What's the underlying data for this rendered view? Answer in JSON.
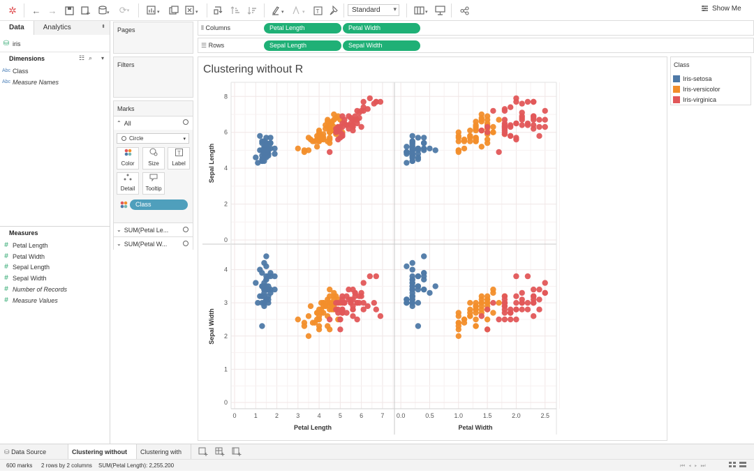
{
  "toolbar": {
    "mark_type_select": "Standard",
    "show_me": "Show Me"
  },
  "data_pane": {
    "tabs": [
      "Data",
      "Analytics"
    ],
    "datasource": "iris",
    "dimensions_title": "Dimensions",
    "dimensions": [
      {
        "icon": "Abc",
        "label": "Class",
        "italic": false
      },
      {
        "icon": "Abc",
        "label": "Measure Names",
        "italic": true
      }
    ],
    "measures_title": "Measures",
    "measures": [
      {
        "label": "Petal Length",
        "italic": false
      },
      {
        "label": "Petal Width",
        "italic": false
      },
      {
        "label": "Sepal Length",
        "italic": false
      },
      {
        "label": "Sepal Width",
        "italic": false
      },
      {
        "label": "Number of Records",
        "italic": true
      },
      {
        "label": "Measure Values",
        "italic": true
      }
    ]
  },
  "pages_card": {
    "title": "Pages"
  },
  "filters_card": {
    "title": "Filters"
  },
  "marks_card": {
    "title": "Marks",
    "all_label": "All",
    "mark_type": "Circle",
    "buttons": [
      "Color",
      "Size",
      "Label",
      "Detail",
      "Tooltip"
    ],
    "color_pill": "Class",
    "measure_rows": [
      "SUM(Petal Le...",
      "SUM(Petal W..."
    ]
  },
  "shelves": {
    "columns_label": "Columns",
    "rows_label": "Rows",
    "columns_pills": [
      "Petal Length",
      "Petal Width"
    ],
    "rows_pills": [
      "Sepal Length",
      "Sepal Width"
    ]
  },
  "legend": {
    "title": "Class",
    "items": [
      {
        "label": "Iris-setosa",
        "color": "#4e79a7"
      },
      {
        "label": "Iris-versicolor",
        "color": "#f28e2b"
      },
      {
        "label": "Iris-virginica",
        "color": "#e15759"
      }
    ]
  },
  "sheet_tabs": [
    "Data Source",
    "Clustering without R",
    "Clustering with R"
  ],
  "active_sheet": "Clustering without R",
  "status": {
    "marks": "600 marks",
    "layout": "2 rows by 2 columns",
    "sum": "SUM(Petal Length): 2,255.200"
  },
  "chart_data": {
    "type": "scatter",
    "title": "Clustering without R",
    "grid": true,
    "columns": [
      {
        "label": "Petal Length",
        "ticks": [
          "0",
          "1",
          "2",
          "3",
          "4",
          "5",
          "6",
          "7"
        ],
        "range": [
          0,
          7.3
        ]
      },
      {
        "label": "Petal Width",
        "ticks": [
          "0.0",
          "0.5",
          "1.0",
          "1.5",
          "2.0",
          "2.5"
        ],
        "range": [
          -0.05,
          2.6
        ]
      }
    ],
    "rows": [
      {
        "label": "Sepal Length",
        "ticks": [
          "0",
          "2",
          "4",
          "6",
          "8"
        ],
        "range": [
          0,
          8.4
        ]
      },
      {
        "label": "Sepal Width",
        "ticks": [
          "0",
          "1",
          "2",
          "3",
          "4"
        ],
        "range": [
          0,
          4.6
        ]
      }
    ],
    "color_by": "Class",
    "series": [
      {
        "name": "Iris-setosa",
        "color": "#4e79a7",
        "points": [
          [
            5.1,
            3.5,
            1.4,
            0.2
          ],
          [
            4.9,
            3.0,
            1.4,
            0.2
          ],
          [
            4.7,
            3.2,
            1.3,
            0.2
          ],
          [
            4.6,
            3.1,
            1.5,
            0.2
          ],
          [
            5.0,
            3.6,
            1.4,
            0.2
          ],
          [
            5.4,
            3.9,
            1.7,
            0.4
          ],
          [
            4.6,
            3.4,
            1.4,
            0.3
          ],
          [
            5.0,
            3.4,
            1.5,
            0.2
          ],
          [
            4.4,
            2.9,
            1.4,
            0.2
          ],
          [
            4.9,
            3.1,
            1.5,
            0.1
          ],
          [
            5.4,
            3.7,
            1.5,
            0.2
          ],
          [
            4.8,
            3.4,
            1.6,
            0.2
          ],
          [
            4.8,
            3.0,
            1.4,
            0.1
          ],
          [
            4.3,
            3.0,
            1.1,
            0.1
          ],
          [
            5.8,
            4.0,
            1.2,
            0.2
          ],
          [
            5.7,
            4.4,
            1.5,
            0.4
          ],
          [
            5.4,
            3.9,
            1.3,
            0.4
          ],
          [
            5.1,
            3.5,
            1.4,
            0.3
          ],
          [
            5.7,
            3.8,
            1.7,
            0.3
          ],
          [
            5.1,
            3.8,
            1.5,
            0.3
          ],
          [
            5.4,
            3.4,
            1.7,
            0.2
          ],
          [
            5.1,
            3.7,
            1.5,
            0.4
          ],
          [
            4.6,
            3.6,
            1.0,
            0.2
          ],
          [
            5.1,
            3.3,
            1.7,
            0.5
          ],
          [
            4.8,
            3.4,
            1.9,
            0.2
          ],
          [
            5.0,
            3.0,
            1.6,
            0.2
          ],
          [
            5.0,
            3.4,
            1.6,
            0.4
          ],
          [
            5.2,
            3.5,
            1.5,
            0.2
          ],
          [
            5.2,
            3.4,
            1.4,
            0.2
          ],
          [
            4.7,
            3.2,
            1.6,
            0.2
          ],
          [
            4.8,
            3.1,
            1.6,
            0.2
          ],
          [
            5.4,
            3.4,
            1.5,
            0.4
          ],
          [
            5.2,
            4.1,
            1.5,
            0.1
          ],
          [
            5.5,
            4.2,
            1.4,
            0.2
          ],
          [
            4.9,
            3.1,
            1.5,
            0.1
          ],
          [
            5.0,
            3.2,
            1.2,
            0.2
          ],
          [
            5.5,
            3.5,
            1.3,
            0.2
          ],
          [
            4.9,
            3.1,
            1.5,
            0.1
          ],
          [
            4.4,
            3.0,
            1.3,
            0.2
          ],
          [
            5.1,
            3.4,
            1.5,
            0.2
          ],
          [
            5.0,
            3.5,
            1.3,
            0.3
          ],
          [
            4.5,
            2.3,
            1.3,
            0.3
          ],
          [
            4.4,
            3.2,
            1.3,
            0.2
          ],
          [
            5.0,
            3.5,
            1.6,
            0.6
          ],
          [
            5.1,
            3.8,
            1.9,
            0.4
          ],
          [
            4.8,
            3.0,
            1.4,
            0.3
          ],
          [
            5.1,
            3.8,
            1.6,
            0.2
          ],
          [
            4.6,
            3.2,
            1.4,
            0.2
          ],
          [
            5.3,
            3.7,
            1.5,
            0.2
          ],
          [
            5.0,
            3.3,
            1.4,
            0.2
          ]
        ]
      },
      {
        "name": "Iris-versicolor",
        "color": "#f28e2b",
        "points": [
          [
            7.0,
            3.2,
            4.7,
            1.4
          ],
          [
            6.4,
            3.2,
            4.5,
            1.5
          ],
          [
            6.9,
            3.1,
            4.9,
            1.5
          ],
          [
            5.5,
            2.3,
            4.0,
            1.3
          ],
          [
            6.5,
            2.8,
            4.6,
            1.5
          ],
          [
            5.7,
            2.8,
            4.5,
            1.3
          ],
          [
            6.3,
            3.3,
            4.7,
            1.6
          ],
          [
            4.9,
            2.4,
            3.3,
            1.0
          ],
          [
            6.6,
            2.9,
            4.6,
            1.3
          ],
          [
            5.2,
            2.7,
            3.9,
            1.4
          ],
          [
            5.0,
            2.0,
            3.5,
            1.0
          ],
          [
            5.9,
            3.0,
            4.2,
            1.5
          ],
          [
            6.0,
            2.2,
            4.0,
            1.0
          ],
          [
            6.1,
            2.9,
            4.7,
            1.4
          ],
          [
            5.6,
            2.9,
            3.6,
            1.3
          ],
          [
            6.7,
            3.1,
            4.4,
            1.4
          ],
          [
            5.6,
            3.0,
            4.5,
            1.5
          ],
          [
            5.8,
            2.7,
            4.1,
            1.0
          ],
          [
            6.2,
            2.2,
            4.5,
            1.5
          ],
          [
            5.6,
            2.5,
            3.9,
            1.1
          ],
          [
            5.9,
            3.2,
            4.8,
            1.8
          ],
          [
            6.1,
            2.8,
            4.0,
            1.3
          ],
          [
            6.3,
            2.5,
            4.9,
            1.5
          ],
          [
            6.1,
            2.8,
            4.7,
            1.2
          ],
          [
            6.4,
            2.9,
            4.3,
            1.3
          ],
          [
            6.6,
            3.0,
            4.4,
            1.4
          ],
          [
            6.8,
            2.8,
            4.8,
            1.4
          ],
          [
            6.7,
            3.0,
            5.0,
            1.7
          ],
          [
            6.0,
            2.9,
            4.5,
            1.5
          ],
          [
            5.7,
            2.6,
            3.5,
            1.0
          ],
          [
            5.5,
            2.4,
            3.8,
            1.1
          ],
          [
            5.5,
            2.4,
            3.7,
            1.0
          ],
          [
            5.8,
            2.7,
            3.9,
            1.2
          ],
          [
            6.0,
            2.7,
            5.1,
            1.6
          ],
          [
            5.4,
            3.0,
            4.5,
            1.5
          ],
          [
            6.0,
            3.4,
            4.5,
            1.6
          ],
          [
            6.7,
            3.1,
            4.7,
            1.5
          ],
          [
            6.3,
            2.3,
            4.4,
            1.3
          ],
          [
            5.6,
            3.0,
            4.1,
            1.3
          ],
          [
            5.5,
            2.5,
            4.0,
            1.3
          ],
          [
            5.5,
            2.6,
            4.4,
            1.2
          ],
          [
            6.1,
            3.0,
            4.6,
            1.4
          ],
          [
            5.8,
            2.6,
            4.0,
            1.2
          ],
          [
            5.0,
            2.3,
            3.3,
            1.0
          ],
          [
            5.6,
            2.7,
            4.2,
            1.3
          ],
          [
            5.7,
            3.0,
            4.2,
            1.2
          ],
          [
            5.7,
            2.9,
            4.2,
            1.3
          ],
          [
            6.2,
            2.9,
            4.3,
            1.3
          ],
          [
            5.1,
            2.5,
            3.0,
            1.1
          ],
          [
            5.7,
            2.8,
            4.1,
            1.3
          ]
        ]
      },
      {
        "name": "Iris-virginica",
        "color": "#e15759",
        "points": [
          [
            6.3,
            3.3,
            6.0,
            2.5
          ],
          [
            5.8,
            2.7,
            5.1,
            1.9
          ],
          [
            7.1,
            3.0,
            5.9,
            2.1
          ],
          [
            6.3,
            2.9,
            5.6,
            1.8
          ],
          [
            6.5,
            3.0,
            5.8,
            2.2
          ],
          [
            7.6,
            3.0,
            6.6,
            2.1
          ],
          [
            4.9,
            2.5,
            4.5,
            1.7
          ],
          [
            7.3,
            2.9,
            6.3,
            1.8
          ],
          [
            6.7,
            2.5,
            5.8,
            1.8
          ],
          [
            7.2,
            3.6,
            6.1,
            2.5
          ],
          [
            6.5,
            3.2,
            5.1,
            2.0
          ],
          [
            6.4,
            2.7,
            5.3,
            1.9
          ],
          [
            6.8,
            3.0,
            5.5,
            2.1
          ],
          [
            5.7,
            2.5,
            5.0,
            2.0
          ],
          [
            5.8,
            2.8,
            5.1,
            2.4
          ],
          [
            6.4,
            3.2,
            5.3,
            2.3
          ],
          [
            6.5,
            3.0,
            5.5,
            1.8
          ],
          [
            7.7,
            3.8,
            6.7,
            2.2
          ],
          [
            7.7,
            2.6,
            6.9,
            2.3
          ],
          [
            6.0,
            2.2,
            5.0,
            1.5
          ],
          [
            6.9,
            3.2,
            5.7,
            2.3
          ],
          [
            5.6,
            2.8,
            4.9,
            2.0
          ],
          [
            7.7,
            2.8,
            6.7,
            2.0
          ],
          [
            6.3,
            2.7,
            4.9,
            1.8
          ],
          [
            6.7,
            3.3,
            5.7,
            2.1
          ],
          [
            7.2,
            3.2,
            6.0,
            1.8
          ],
          [
            6.2,
            2.8,
            4.8,
            1.8
          ],
          [
            6.1,
            3.0,
            4.9,
            1.8
          ],
          [
            6.4,
            2.8,
            5.6,
            2.1
          ],
          [
            7.2,
            3.0,
            5.8,
            1.6
          ],
          [
            7.4,
            2.8,
            6.1,
            1.9
          ],
          [
            7.9,
            3.8,
            6.4,
            2.0
          ],
          [
            6.4,
            2.8,
            5.6,
            2.2
          ],
          [
            6.3,
            2.8,
            5.1,
            1.5
          ],
          [
            6.1,
            2.6,
            5.6,
            1.4
          ],
          [
            7.7,
            3.0,
            6.1,
            2.3
          ],
          [
            6.3,
            3.4,
            5.6,
            2.4
          ],
          [
            6.4,
            3.1,
            5.5,
            1.8
          ],
          [
            6.0,
            3.0,
            4.8,
            1.8
          ],
          [
            6.9,
            3.1,
            5.4,
            2.1
          ],
          [
            6.7,
            3.1,
            5.6,
            2.4
          ],
          [
            6.9,
            3.1,
            5.1,
            2.3
          ],
          [
            5.8,
            2.7,
            5.1,
            1.9
          ],
          [
            6.8,
            3.2,
            5.9,
            2.3
          ],
          [
            6.7,
            3.3,
            5.7,
            2.5
          ],
          [
            6.7,
            3.0,
            5.2,
            2.3
          ],
          [
            6.3,
            2.5,
            5.0,
            1.9
          ],
          [
            6.5,
            3.0,
            5.2,
            2.0
          ],
          [
            6.2,
            3.4,
            5.4,
            2.3
          ],
          [
            5.9,
            3.0,
            5.1,
            1.8
          ]
        ]
      }
    ]
  }
}
